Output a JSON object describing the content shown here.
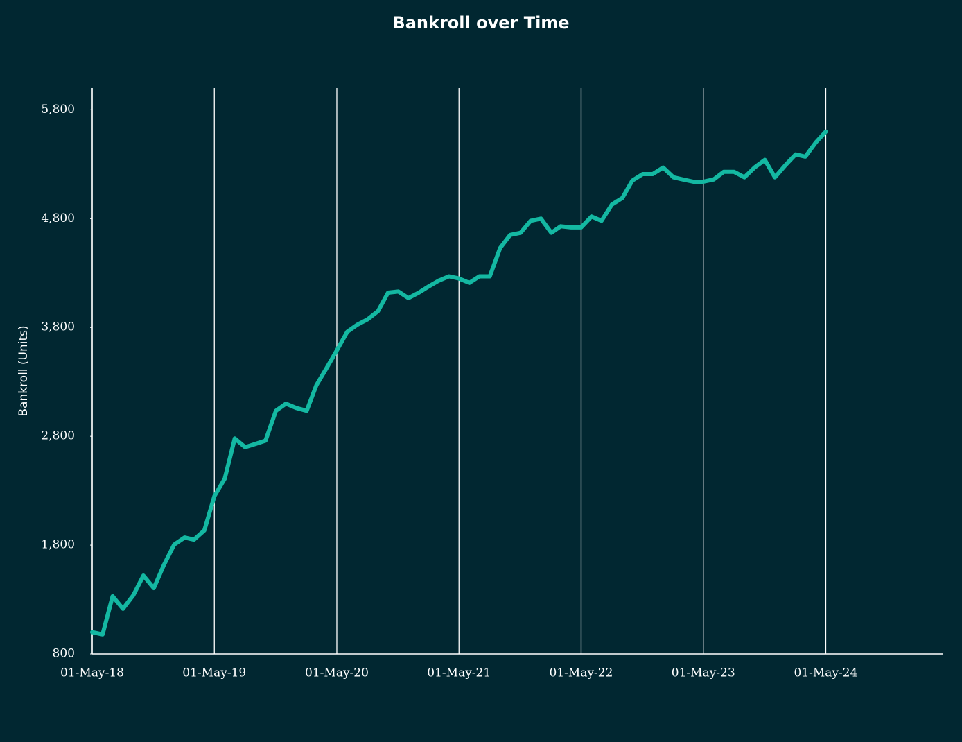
{
  "chart_data": {
    "type": "line",
    "title": "Bankroll over Time",
    "y_label": "Bankroll (Units)",
    "color": "#14b8a2",
    "x": [
      "2018-05-01",
      "2018-06-01",
      "2018-07-01",
      "2018-08-01",
      "2018-09-01",
      "2018-10-01",
      "2018-11-01",
      "2018-12-01",
      "2019-01-01",
      "2019-02-01",
      "2019-03-01",
      "2019-04-01",
      "2019-05-01",
      "2019-06-01",
      "2019-07-01",
      "2019-08-01",
      "2019-09-01",
      "2019-10-01",
      "2019-11-01",
      "2019-12-01",
      "2020-01-01",
      "2020-02-01",
      "2020-03-01",
      "2020-04-01",
      "2020-05-01",
      "2020-06-01",
      "2020-07-01",
      "2020-08-01",
      "2020-09-01",
      "2020-10-01",
      "2020-11-01",
      "2020-12-01",
      "2021-01-01",
      "2021-02-01",
      "2021-03-01",
      "2021-04-01",
      "2021-05-01",
      "2021-06-01",
      "2021-07-01",
      "2021-08-01",
      "2021-09-01",
      "2021-10-01",
      "2021-11-01",
      "2021-12-01",
      "2022-01-01",
      "2022-02-01",
      "2022-03-01",
      "2022-04-01",
      "2022-05-01",
      "2022-06-01",
      "2022-07-01",
      "2022-08-01",
      "2022-09-01",
      "2022-10-01",
      "2022-11-01",
      "2022-12-01",
      "2023-01-01",
      "2023-02-01",
      "2023-03-01",
      "2023-04-01",
      "2023-05-01",
      "2023-06-01",
      "2023-07-01",
      "2023-08-01",
      "2023-09-01",
      "2023-10-01",
      "2023-11-01",
      "2023-12-01",
      "2024-01-01",
      "2024-02-01",
      "2024-03-01",
      "2024-04-01",
      "2024-05-01"
    ],
    "values": [
      1000,
      980,
      1330,
      1215,
      1340,
      1520,
      1405,
      1615,
      1805,
      1870,
      1850,
      1935,
      2250,
      2410,
      2780,
      2700,
      2730,
      2760,
      3035,
      3100,
      3060,
      3035,
      3270,
      3430,
      3590,
      3760,
      3825,
      3875,
      3950,
      4120,
      4130,
      4070,
      4120,
      4180,
      4230,
      4270,
      4250,
      4210,
      4270,
      4270,
      4530,
      4650,
      4670,
      4780,
      4800,
      4670,
      4730,
      4720,
      4720,
      4820,
      4780,
      4930,
      4990,
      5150,
      5210,
      5210,
      5270,
      5180,
      5160,
      5140,
      5140,
      5160,
      5230,
      5230,
      5180,
      5270,
      5340,
      5180,
      5290,
      5390,
      5370,
      5500,
      5600
    ],
    "xlim": [
      "2018-05-01",
      "2025-04-15"
    ],
    "xticks": [
      {
        "value": "2018-05-01",
        "label": "01-May-18"
      },
      {
        "value": "2019-05-01",
        "label": "01-May-19"
      },
      {
        "value": "2020-05-01",
        "label": "01-May-20"
      },
      {
        "value": "2021-05-01",
        "label": "01-May-21"
      },
      {
        "value": "2022-05-01",
        "label": "01-May-22"
      },
      {
        "value": "2023-05-01",
        "label": "01-May-23"
      },
      {
        "value": "2024-05-01",
        "label": "01-May-24"
      }
    ],
    "ylim": [
      800,
      6000
    ],
    "yticks": [
      800,
      {
        "value": 1800,
        "label": "1,800"
      },
      {
        "value": 2800,
        "label": "2,800"
      },
      {
        "value": 3800,
        "label": "3,800"
      },
      {
        "value": 4800,
        "label": "4,800"
      },
      {
        "value": 5800,
        "label": "5,800"
      }
    ],
    "grid": "x"
  }
}
